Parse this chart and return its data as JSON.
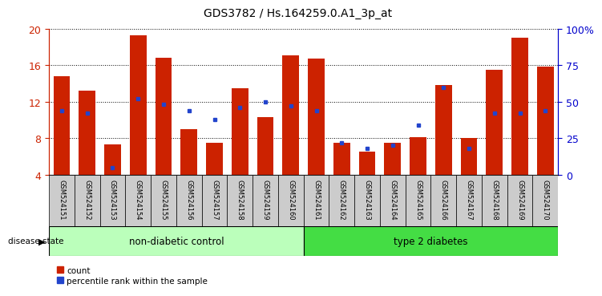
{
  "title": "GDS3782 / Hs.164259.0.A1_3p_at",
  "samples": [
    "GSM524151",
    "GSM524152",
    "GSM524153",
    "GSM524154",
    "GSM524155",
    "GSM524156",
    "GSM524157",
    "GSM524158",
    "GSM524159",
    "GSM524160",
    "GSM524161",
    "GSM524162",
    "GSM524163",
    "GSM524164",
    "GSM524165",
    "GSM524166",
    "GSM524167",
    "GSM524168",
    "GSM524169",
    "GSM524170"
  ],
  "count_values": [
    14.8,
    13.2,
    7.3,
    19.3,
    16.8,
    9.0,
    7.5,
    13.5,
    10.3,
    17.1,
    16.7,
    7.5,
    6.5,
    7.5,
    8.1,
    13.8,
    8.0,
    15.5,
    19.0,
    15.8
  ],
  "percentile_values": [
    44,
    42,
    5,
    52,
    48,
    44,
    38,
    46,
    50,
    47,
    44,
    22,
    18,
    20,
    34,
    60,
    18,
    42,
    42,
    44
  ],
  "groups": [
    {
      "label": "non-diabetic control",
      "start": 0,
      "end": 10,
      "color": "#bbffbb"
    },
    {
      "label": "type 2 diabetes",
      "start": 10,
      "end": 20,
      "color": "#44dd44"
    }
  ],
  "bar_color": "#cc2200",
  "blue_color": "#2244cc",
  "left_ylim": [
    4,
    20
  ],
  "right_ylim": [
    0,
    100
  ],
  "left_yticks": [
    4,
    8,
    12,
    16,
    20
  ],
  "right_yticks": [
    0,
    25,
    50,
    75,
    100
  ],
  "right_yticklabels": [
    "0",
    "25",
    "50",
    "75",
    "100%"
  ],
  "bar_width": 0.65,
  "disease_state_label": "disease state",
  "legend_count_label": "count",
  "legend_percentile_label": "percentile rank within the sample",
  "axis_color_left": "#cc2200",
  "axis_color_right": "#0000cc",
  "background_color": "#ffffff",
  "tick_label_bg": "#cccccc"
}
